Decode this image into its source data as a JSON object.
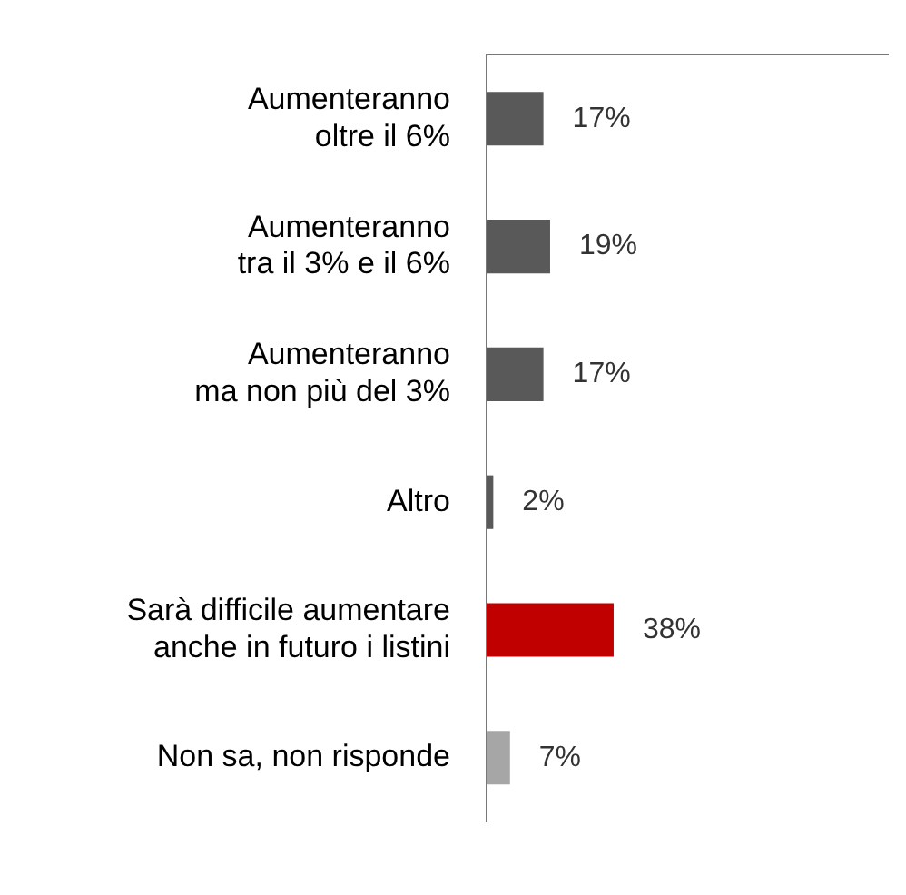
{
  "chart_data": {
    "type": "bar",
    "orientation": "horizontal",
    "categories": [
      "Aumenteranno\noltre il 6%",
      "Aumenteranno\ntra il 3% e il 6%",
      "Aumenteranno\nma non più del 3%",
      "Altro",
      "Sarà difficile aumentare\nanche in futuro i listini",
      "Non sa, non risponde"
    ],
    "values": [
      17,
      19,
      17,
      2,
      38,
      7
    ],
    "colors": [
      "#595959",
      "#595959",
      "#595959",
      "#595959",
      "#c00000",
      "#a6a6a6"
    ],
    "value_labels": [
      "17%",
      "19%",
      "17%",
      "2%",
      "38%",
      "7%"
    ],
    "xlim": [
      0,
      120
    ],
    "tick_labels": "y",
    "grid": false,
    "legend": false
  }
}
